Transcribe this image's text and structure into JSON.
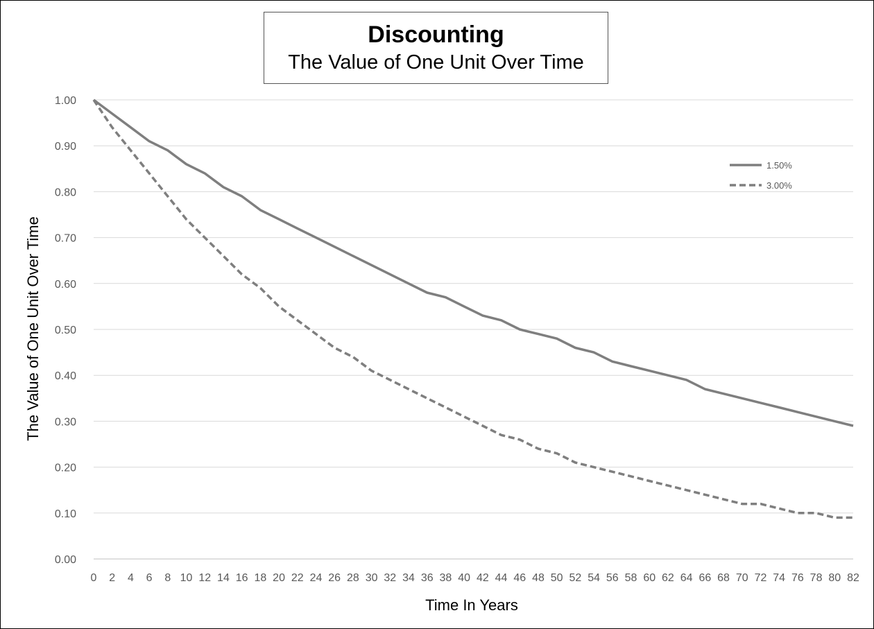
{
  "chart_data": {
    "type": "line",
    "title": "Discounting",
    "subtitle": "The Value of One Unit Over Time",
    "xlabel": "Time In Years",
    "ylabel": "The Value of One Unit Over Time",
    "xlim": [
      0,
      82
    ],
    "ylim": [
      0,
      1
    ],
    "x_ticks": [
      "0",
      "2",
      "4",
      "6",
      "8",
      "10",
      "12",
      "14",
      "16",
      "18",
      "20",
      "22",
      "24",
      "26",
      "28",
      "30",
      "32",
      "34",
      "36",
      "38",
      "40",
      "42",
      "44",
      "46",
      "48",
      "50",
      "52",
      "54",
      "56",
      "58",
      "60",
      "62",
      "64",
      "66",
      "68",
      "70",
      "72",
      "74",
      "76",
      "78",
      "80",
      "82"
    ],
    "y_ticks": [
      "0.00",
      "0.10",
      "0.20",
      "0.30",
      "0.40",
      "0.50",
      "0.60",
      "0.70",
      "0.80",
      "0.90",
      "1.00"
    ],
    "grid": "horizontal",
    "legend_position": "top-right",
    "x": [
      0,
      2,
      4,
      6,
      8,
      10,
      12,
      14,
      16,
      18,
      20,
      22,
      24,
      26,
      28,
      30,
      32,
      34,
      36,
      38,
      40,
      42,
      44,
      46,
      48,
      50,
      52,
      54,
      56,
      58,
      60,
      62,
      64,
      66,
      68,
      70,
      72,
      74,
      76,
      78,
      80,
      82
    ],
    "series": [
      {
        "name": "1.50%",
        "style": "solid",
        "color": "#7f7f7f",
        "values": [
          1.0,
          0.97,
          0.94,
          0.91,
          0.89,
          0.86,
          0.84,
          0.81,
          0.79,
          0.76,
          0.74,
          0.72,
          0.7,
          0.68,
          0.66,
          0.64,
          0.62,
          0.6,
          0.58,
          0.57,
          0.55,
          0.53,
          0.52,
          0.5,
          0.49,
          0.48,
          0.46,
          0.45,
          0.43,
          0.42,
          0.41,
          0.4,
          0.39,
          0.37,
          0.36,
          0.35,
          0.34,
          0.33,
          0.32,
          0.31,
          0.3,
          0.29
        ]
      },
      {
        "name": "3.00%",
        "style": "dashed",
        "color": "#7f7f7f",
        "values": [
          1.0,
          0.94,
          0.89,
          0.84,
          0.79,
          0.74,
          0.7,
          0.66,
          0.62,
          0.59,
          0.55,
          0.52,
          0.49,
          0.46,
          0.44,
          0.41,
          0.39,
          0.37,
          0.35,
          0.33,
          0.31,
          0.29,
          0.27,
          0.26,
          0.24,
          0.23,
          0.21,
          0.2,
          0.19,
          0.18,
          0.17,
          0.16,
          0.15,
          0.14,
          0.13,
          0.12,
          0.12,
          0.11,
          0.1,
          0.1,
          0.09,
          0.09
        ]
      }
    ]
  }
}
